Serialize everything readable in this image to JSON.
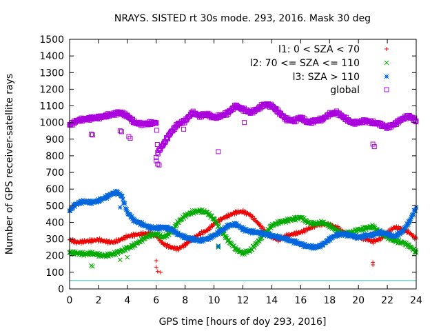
{
  "chart_data": {
    "type": "scatter",
    "title": "NRAYS. SISTED rt 30s mode. 293, 2016. Mask 30 deg",
    "xlabel": "GPS time [hours of doy 293, 2016]",
    "ylabel": "Number of GPS receiver-satellite rays",
    "xlim": [
      0,
      24
    ],
    "ylim": [
      0,
      1500
    ],
    "x_ticks": [
      "0",
      "2",
      "4",
      "6",
      "8",
      "10",
      "12",
      "14",
      "16",
      "18",
      "20",
      "22",
      "24"
    ],
    "y_ticks": [
      "0",
      "100",
      "200",
      "300",
      "400",
      "500",
      "600",
      "700",
      "800",
      "900",
      "1000",
      "1100",
      "1200",
      "1300",
      "1400",
      "1500"
    ],
    "legend_position": "top-right",
    "threshold_line": {
      "y": 50,
      "color": "#33bbbb"
    },
    "series": [
      {
        "name": "l1: 0 < SZA < 70",
        "marker": "+",
        "color": "#ee0000",
        "points": [
          [
            0,
            295
          ],
          [
            0.5,
            280
          ],
          [
            1,
            285
          ],
          [
            1.5,
            290
          ],
          [
            2,
            295
          ],
          [
            2.5,
            285
          ],
          [
            3,
            280
          ],
          [
            3.5,
            295
          ],
          [
            4,
            315
          ],
          [
            4.5,
            325
          ],
          [
            5,
            330
          ],
          [
            5.5,
            335
          ],
          [
            6,
            320
          ],
          [
            6.5,
            270
          ],
          [
            7,
            250
          ],
          [
            7.5,
            240
          ],
          [
            8,
            265
          ],
          [
            8.5,
            300
          ],
          [
            9,
            330
          ],
          [
            9.5,
            350
          ],
          [
            10,
            390
          ],
          [
            10.5,
            420
          ],
          [
            11,
            440
          ],
          [
            11.5,
            460
          ],
          [
            12,
            465
          ],
          [
            12.5,
            445
          ],
          [
            13,
            400
          ],
          [
            13.5,
            350
          ],
          [
            14,
            310
          ],
          [
            14.5,
            295
          ],
          [
            15,
            320
          ],
          [
            15.5,
            330
          ],
          [
            16,
            340
          ],
          [
            16.5,
            360
          ],
          [
            17,
            380
          ],
          [
            17.5,
            390
          ],
          [
            18,
            385
          ],
          [
            18.5,
            370
          ],
          [
            19,
            340
          ],
          [
            19.5,
            320
          ],
          [
            20,
            310
          ],
          [
            20.5,
            300
          ],
          [
            21,
            285
          ],
          [
            21.5,
            300
          ],
          [
            22,
            340
          ],
          [
            22.5,
            370
          ],
          [
            23,
            360
          ],
          [
            23.5,
            340
          ],
          [
            24,
            300
          ]
        ],
        "outliers": [
          [
            6,
            170
          ],
          [
            6,
            130
          ],
          [
            6.1,
            105
          ],
          [
            6.3,
            100
          ],
          [
            21,
            160
          ],
          [
            21,
            145
          ]
        ]
      },
      {
        "name": "l2: 70 <= SZA <= 110",
        "marker": "x",
        "color": "#00aa00",
        "points": [
          [
            0,
            220
          ],
          [
            0.5,
            215
          ],
          [
            1,
            210
          ],
          [
            1.5,
            215
          ],
          [
            2,
            205
          ],
          [
            2.5,
            200
          ],
          [
            3,
            210
          ],
          [
            3.5,
            225
          ],
          [
            4,
            245
          ],
          [
            4.5,
            265
          ],
          [
            5,
            295
          ],
          [
            5.5,
            320
          ],
          [
            6,
            330
          ],
          [
            6.5,
            310
          ],
          [
            7,
            340
          ],
          [
            7.5,
            400
          ],
          [
            8,
            440
          ],
          [
            8.5,
            460
          ],
          [
            9,
            470
          ],
          [
            9.5,
            460
          ],
          [
            10,
            420
          ],
          [
            10.5,
            350
          ],
          [
            11,
            290
          ],
          [
            11.5,
            240
          ],
          [
            12,
            215
          ],
          [
            12.5,
            230
          ],
          [
            13,
            280
          ],
          [
            13.5,
            330
          ],
          [
            14,
            380
          ],
          [
            14.5,
            400
          ],
          [
            15,
            410
          ],
          [
            15.5,
            420
          ],
          [
            16,
            430
          ],
          [
            16.5,
            400
          ],
          [
            17,
            390
          ],
          [
            17.5,
            400
          ],
          [
            18,
            380
          ],
          [
            18.5,
            350
          ],
          [
            19,
            330
          ],
          [
            19.5,
            340
          ],
          [
            20,
            355
          ],
          [
            20.5,
            365
          ],
          [
            21,
            375
          ],
          [
            21.5,
            340
          ],
          [
            22,
            310
          ],
          [
            22.5,
            290
          ],
          [
            23,
            280
          ],
          [
            23.5,
            260
          ],
          [
            24,
            220
          ]
        ],
        "outliers": [
          [
            1.5,
            140
          ],
          [
            1.6,
            135
          ],
          [
            3.5,
            175
          ],
          [
            4,
            190
          ],
          [
            10.3,
            260
          ],
          [
            10.3,
            250
          ]
        ]
      },
      {
        "name": "l3: SZA > 110",
        "marker": "*",
        "color": "#0066dd",
        "points": [
          [
            0,
            470
          ],
          [
            0.3,
            500
          ],
          [
            0.7,
            520
          ],
          [
            1,
            525
          ],
          [
            1.5,
            520
          ],
          [
            2,
            530
          ],
          [
            2.5,
            550
          ],
          [
            3,
            575
          ],
          [
            3.3,
            580
          ],
          [
            3.6,
            560
          ],
          [
            4,
            460
          ],
          [
            4.5,
            410
          ],
          [
            5,
            390
          ],
          [
            5.5,
            370
          ],
          [
            6,
            365
          ],
          [
            6.5,
            370
          ],
          [
            7,
            360
          ],
          [
            7.5,
            330
          ],
          [
            8,
            310
          ],
          [
            8.5,
            300
          ],
          [
            9,
            290
          ],
          [
            9.5,
            300
          ],
          [
            10,
            320
          ],
          [
            10.5,
            350
          ],
          [
            11,
            380
          ],
          [
            11.5,
            390
          ],
          [
            12,
            360
          ],
          [
            12.5,
            345
          ],
          [
            13,
            340
          ],
          [
            13.5,
            330
          ],
          [
            14,
            320
          ],
          [
            14.5,
            310
          ],
          [
            15,
            300
          ],
          [
            15.5,
            285
          ],
          [
            16,
            270
          ],
          [
            16.5,
            255
          ],
          [
            17,
            250
          ],
          [
            17.5,
            265
          ],
          [
            18,
            300
          ],
          [
            18.5,
            325
          ],
          [
            19,
            330
          ],
          [
            19.5,
            320
          ],
          [
            20,
            310
          ],
          [
            20.5,
            320
          ],
          [
            21,
            325
          ],
          [
            21.5,
            340
          ],
          [
            22,
            330
          ],
          [
            22.5,
            315
          ],
          [
            23,
            340
          ],
          [
            23.5,
            400
          ],
          [
            24,
            490
          ]
        ],
        "outliers": [
          [
            10.3,
            255
          ],
          [
            3.5,
            490
          ]
        ]
      },
      {
        "name": "global",
        "marker": "square",
        "color": "#aa00dd",
        "points": [
          [
            0,
            985
          ],
          [
            0.5,
            1010
          ],
          [
            1,
            1020
          ],
          [
            1.5,
            1025
          ],
          [
            2,
            1030
          ],
          [
            2.5,
            1040
          ],
          [
            3,
            1050
          ],
          [
            3.5,
            1060
          ],
          [
            4,
            1040
          ],
          [
            4.5,
            1000
          ],
          [
            5,
            990
          ],
          [
            5.5,
            995
          ],
          [
            6,
            1000
          ],
          [
            6.1,
            820
          ],
          [
            6.5,
            870
          ],
          [
            7,
            940
          ],
          [
            7.5,
            990
          ],
          [
            8,
            1010
          ],
          [
            8.5,
            1060
          ],
          [
            9,
            1040
          ],
          [
            9.5,
            1050
          ],
          [
            10,
            1030
          ],
          [
            10.5,
            1040
          ],
          [
            11,
            1060
          ],
          [
            11.5,
            1100
          ],
          [
            12,
            1080
          ],
          [
            12.5,
            1060
          ],
          [
            13,
            1080
          ],
          [
            13.5,
            1110
          ],
          [
            14,
            1100
          ],
          [
            14.5,
            1060
          ],
          [
            15,
            1020
          ],
          [
            15.5,
            1010
          ],
          [
            16,
            1030
          ],
          [
            16.5,
            1000
          ],
          [
            17,
            1010
          ],
          [
            17.5,
            1020
          ],
          [
            18,
            1050
          ],
          [
            18.5,
            1060
          ],
          [
            19,
            1030
          ],
          [
            19.5,
            1000
          ],
          [
            20,
            1000
          ],
          [
            20.5,
            1010
          ],
          [
            21,
            1000
          ],
          [
            21.5,
            990
          ],
          [
            22,
            970
          ],
          [
            22.5,
            990
          ],
          [
            23,
            1020
          ],
          [
            23.5,
            1040
          ],
          [
            24,
            1010
          ]
        ],
        "outliers": [
          [
            1.5,
            930
          ],
          [
            1.6,
            925
          ],
          [
            3.5,
            950
          ],
          [
            3.6,
            945
          ],
          [
            4.1,
            915
          ],
          [
            4.2,
            905
          ],
          [
            6,
            790
          ],
          [
            6,
            770
          ],
          [
            6.1,
            750
          ],
          [
            6.2,
            745
          ],
          [
            7.9,
            960
          ],
          [
            10.3,
            825
          ],
          [
            12.1,
            1000
          ],
          [
            21,
            870
          ],
          [
            21.1,
            855
          ]
        ]
      }
    ]
  }
}
